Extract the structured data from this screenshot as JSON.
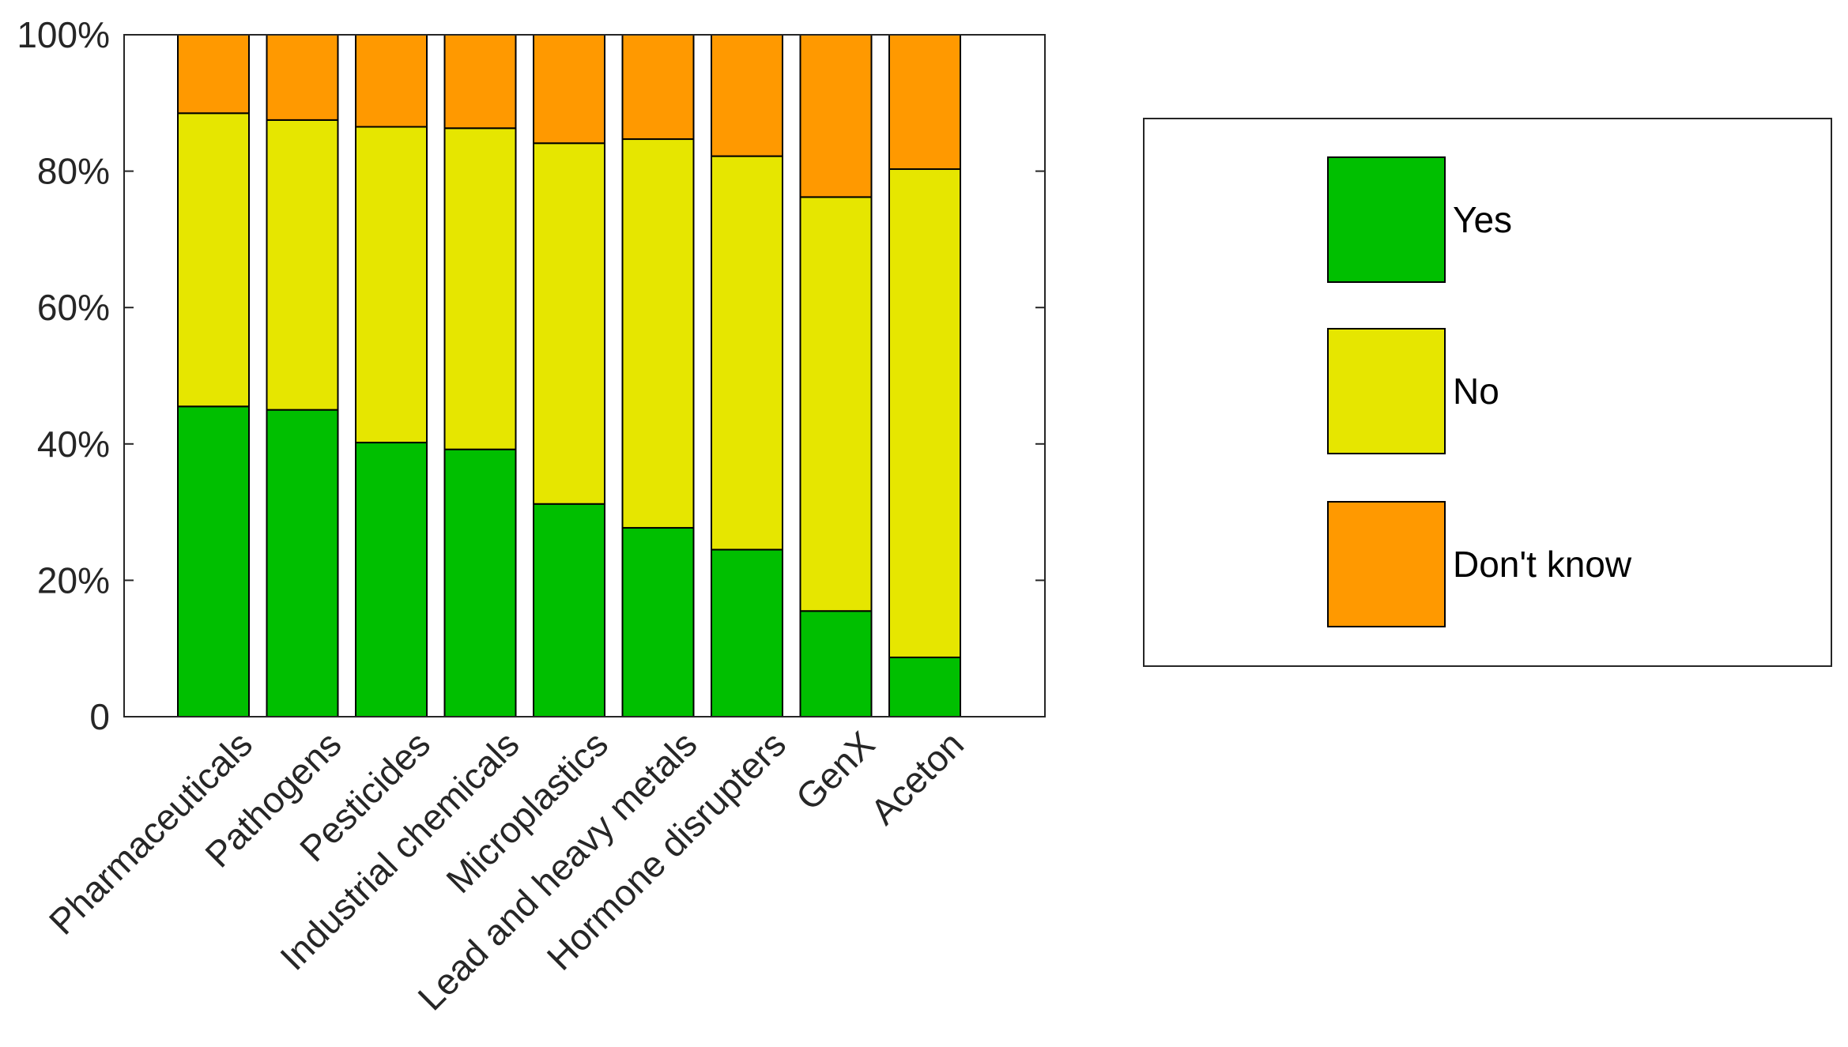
{
  "chart_data": {
    "type": "bar",
    "stacked": true,
    "categories": [
      "Pharmaceuticals",
      "Pathogens",
      "Pesticides",
      "Industrial chemicals",
      "Microplastics",
      "Lead and heavy metals",
      "Hormone disrupters",
      "GenX",
      "Aceton"
    ],
    "series": [
      {
        "name": "Yes",
        "color": "#00bf00",
        "values": [
          45.5,
          45,
          40.2,
          39.2,
          31.2,
          27.7,
          24.5,
          15.5,
          8.7
        ]
      },
      {
        "name": "No",
        "color": "#e6e600",
        "values": [
          43,
          42.5,
          46.3,
          47.1,
          52.9,
          57,
          57.7,
          60.7,
          71.6
        ]
      },
      {
        "name": "Don't know",
        "color": "#ff9900",
        "values": [
          11.5,
          12.5,
          13.5,
          13.7,
          15.9,
          15.3,
          17.8,
          23.8,
          19.7
        ]
      }
    ],
    "ylim": [
      0,
      100
    ],
    "yticks": [
      0,
      20,
      40,
      60,
      80,
      100
    ],
    "ytick_labels": [
      "0",
      "20%",
      "40%",
      "60%",
      "80%",
      "100%"
    ],
    "title": "",
    "xlabel": "",
    "ylabel": "",
    "legend_position": "right"
  }
}
